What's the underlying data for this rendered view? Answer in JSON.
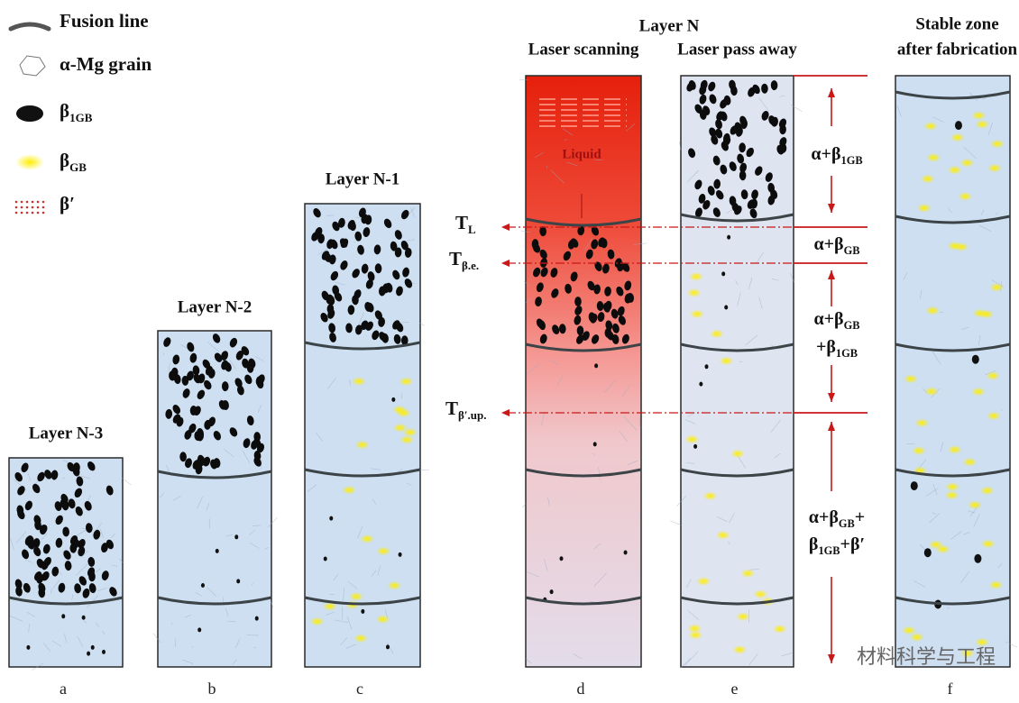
{
  "legend": [
    [
      {
        "t": "Fusion line"
      }
    ],
    [
      {
        "t": "α-Mg grain"
      }
    ],
    [
      {
        "t": "β"
      },
      {
        "sub": "1GB"
      }
    ],
    [
      {
        "t": "β"
      },
      {
        "sub": "GB"
      }
    ],
    [
      {
        "t": "β′"
      }
    ]
  ],
  "columns": [
    {
      "title": [
        "Layer N-3"
      ],
      "letter": "a"
    },
    {
      "title": [
        "Layer N-2"
      ],
      "letter": "b"
    },
    {
      "title": [
        "Layer N-1"
      ],
      "letter": "c"
    },
    {
      "title": [
        "Laser scanning"
      ],
      "letter": "d"
    },
    {
      "title": [
        "Laser pass away"
      ],
      "letter": "e"
    },
    {
      "title": [
        "Stable zone",
        "after fabrication"
      ],
      "letter": "f"
    }
  ],
  "layer_n": "Layer N",
  "liquid": "Liquid",
  "temperatures": [
    [
      {
        "t": "T"
      },
      {
        "sub": "L"
      }
    ],
    [
      {
        "t": "T"
      },
      {
        "sub": "β.e."
      }
    ],
    [
      {
        "t": "T"
      },
      {
        "sub": "β′.up."
      }
    ]
  ],
  "phases": [
    [
      [
        {
          "t": "α+β"
        },
        {
          "sub": "1GB"
        }
      ]
    ],
    [
      [
        {
          "t": "α+β"
        },
        {
          "sub": "GB"
        }
      ]
    ],
    [
      [
        {
          "t": "α+β"
        },
        {
          "sub": "GB"
        }
      ],
      [
        {
          "t": "+β"
        },
        {
          "sub": "1GB"
        }
      ]
    ],
    [
      [
        {
          "t": "α+β"
        },
        {
          "sub": "GB"
        },
        {
          "t": "+"
        }
      ],
      [
        {
          "t": "β"
        },
        {
          "sub": "1GB"
        },
        {
          "t": "+β′"
        }
      ]
    ]
  ],
  "watermark": "材料科学与工程"
}
